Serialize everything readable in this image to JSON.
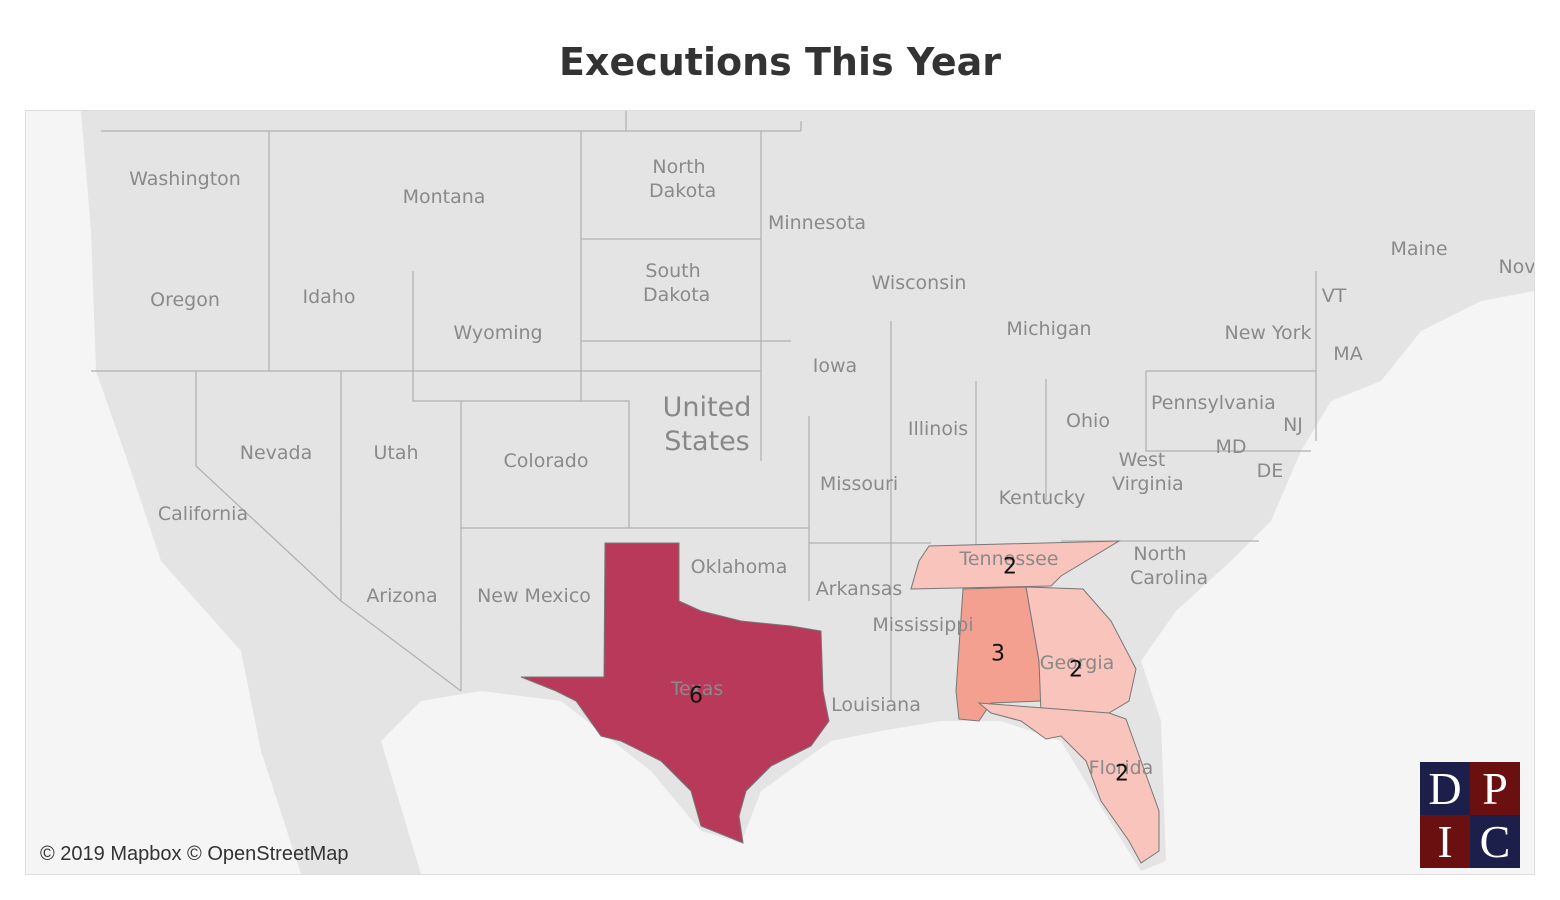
{
  "title": "Executions This Year",
  "map": {
    "type": "choropleth",
    "country_label": "United States",
    "labels": [
      "Washington",
      "Montana",
      "North Dakota",
      "Minnesota",
      "Oregon",
      "Idaho",
      "Wyoming",
      "South Dakota",
      "Wisconsin",
      "Michigan",
      "Maine",
      "Nov",
      "VT",
      "New York",
      "MA",
      "Iowa",
      "Pennsylvania",
      "NJ",
      "Nevada",
      "Utah",
      "Colorado",
      "Illinois",
      "Ohio",
      "MD",
      "DE",
      "West Virginia",
      "Missouri",
      "Kentucky",
      "California",
      "Tennessee",
      "North Carolina",
      "Oklahoma",
      "Arkansas",
      "Arizona",
      "New Mexico",
      "Mississippi",
      "Georgia",
      "Texas",
      "Louisiana",
      "Florida"
    ],
    "shaded": [
      {
        "value": 6,
        "color": "#b8395a"
      },
      {
        "value": 3,
        "color": "#f4a090"
      },
      {
        "value": 2,
        "color": "#f8c4bb"
      },
      {
        "value": 2,
        "color": "#f8c4bb"
      },
      {
        "value": 2,
        "color": "#f8c4bb"
      }
    ]
  },
  "attribution": "© 2019 Mapbox © OpenStreetMap",
  "logo": [
    "D",
    "P",
    "I",
    "C"
  ]
}
